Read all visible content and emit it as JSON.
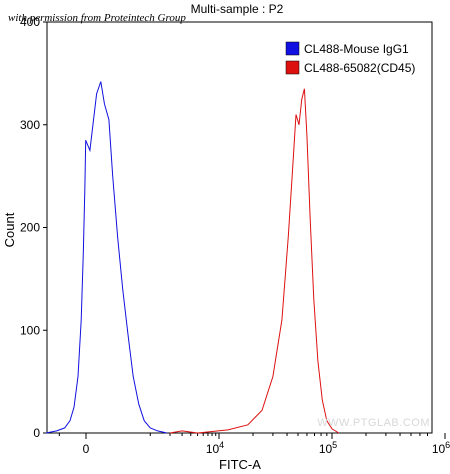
{
  "permission_note": "with permission from Proteintech Group",
  "watermark": "WWW.PTGLAB.COM",
  "chart_data": {
    "type": "line",
    "title": "Multi-sample : P2",
    "xlabel": "FITC-A",
    "ylabel": "Count",
    "xscale": "biexponential",
    "ylim": [
      0,
      400
    ],
    "yticks": [
      0,
      100,
      200,
      300,
      400
    ],
    "xticks": [
      {
        "value": 0,
        "label": "0",
        "exp": ""
      },
      {
        "value": 10000,
        "label": "10",
        "exp": "4"
      },
      {
        "value": 100000,
        "label": "10",
        "exp": "5"
      },
      {
        "value": 1000000,
        "label": "10",
        "exp": "6"
      }
    ],
    "grid": false,
    "legend_position": "top-right",
    "series": [
      {
        "name": "CL488-Mouse IgG1",
        "color": "#1010e0",
        "points": [
          [
            -1500,
            0
          ],
          [
            -1100,
            2
          ],
          [
            -800,
            5
          ],
          [
            -600,
            12
          ],
          [
            -450,
            25
          ],
          [
            -300,
            55
          ],
          [
            -180,
            110
          ],
          [
            -100,
            175
          ],
          [
            -40,
            240
          ],
          [
            -10,
            285
          ],
          [
            20,
            275
          ],
          [
            60,
            330
          ],
          [
            90,
            342
          ],
          [
            120,
            320
          ],
          [
            160,
            305
          ],
          [
            200,
            250
          ],
          [
            260,
            190
          ],
          [
            330,
            140
          ],
          [
            420,
            95
          ],
          [
            520,
            55
          ],
          [
            650,
            28
          ],
          [
            800,
            12
          ],
          [
            1000,
            5
          ],
          [
            1300,
            2
          ],
          [
            1800,
            0
          ]
        ]
      },
      {
        "name": "CL488-65082(CD45)",
        "color": "#dd1010",
        "points": [
          [
            2000,
            0
          ],
          [
            3000,
            2
          ],
          [
            5000,
            0
          ],
          [
            12000,
            3
          ],
          [
            18000,
            8
          ],
          [
            24000,
            22
          ],
          [
            30000,
            55
          ],
          [
            36000,
            110
          ],
          [
            41000,
            190
          ],
          [
            45000,
            260
          ],
          [
            48000,
            310
          ],
          [
            51000,
            300
          ],
          [
            54000,
            325
          ],
          [
            57000,
            335
          ],
          [
            60000,
            290
          ],
          [
            64000,
            210
          ],
          [
            69000,
            130
          ],
          [
            75000,
            70
          ],
          [
            82000,
            32
          ],
          [
            90000,
            12
          ],
          [
            100000,
            4
          ],
          [
            115000,
            0
          ]
        ]
      }
    ]
  }
}
